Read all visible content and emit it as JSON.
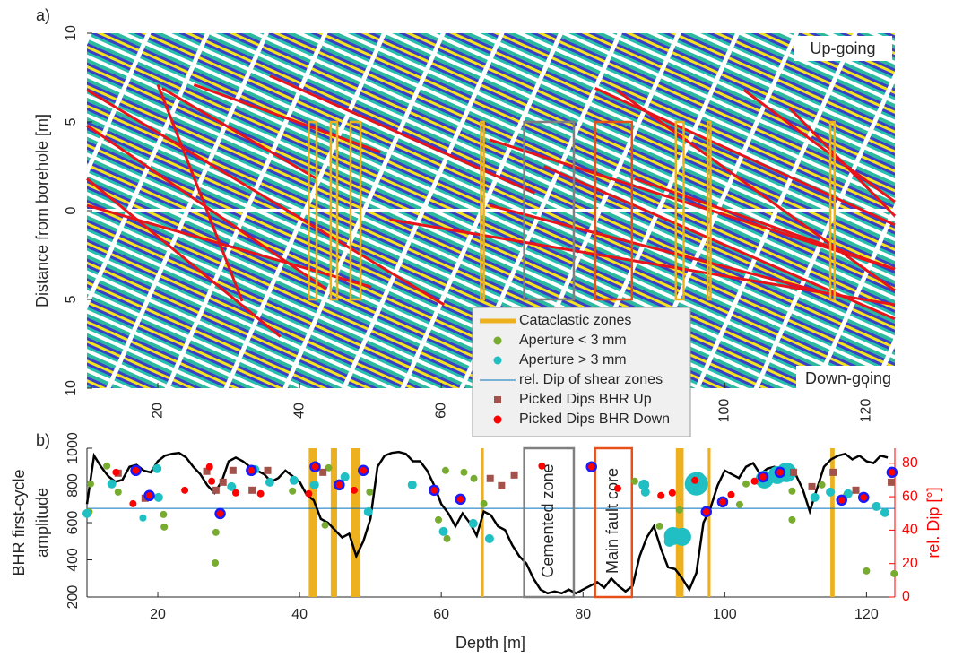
{
  "chart_data": [
    {
      "type": "line",
      "panel_label": "a)",
      "ylabel": "Distance from borehole [m]",
      "xlim": [
        10,
        124
      ],
      "ylim": [
        -10,
        10
      ],
      "xticks": [
        20,
        40,
        60,
        80,
        100,
        120
      ],
      "yticks": [
        10,
        5,
        0,
        {
          "value": -5,
          "label": "5"
        },
        {
          "value": -10,
          "label": "10"
        }
      ],
      "annotations": [
        "Up-going",
        "Down-going"
      ],
      "box_ylim": [
        -5,
        5
      ],
      "segments": {
        "color": "#e8141b",
        "x": [
          [
            10,
            60.4
          ],
          [
            10,
            43.7
          ],
          [
            10,
            37.3
          ],
          [
            20,
            31.9
          ],
          [
            20.6,
            42.4
          ],
          [
            25.1,
            51.4
          ],
          [
            35.8,
            73.2
          ],
          [
            66.8,
            124
          ],
          [
            81.7,
            124
          ],
          [
            84.7,
            124
          ],
          [
            74.5,
            124
          ],
          [
            52.7,
            124
          ],
          [
            102.7,
            124
          ],
          [
            109.1,
            124
          ],
          [
            66.8,
            112.9
          ],
          [
            87.3,
            124
          ],
          [
            10,
            50.1
          ]
        ],
        "y": [
          [
            6.8,
            -5.3
          ],
          [
            4.8,
            -4.4
          ],
          [
            1.8,
            -7.1
          ],
          [
            7.1,
            -5.1
          ],
          [
            6.9,
            1.8
          ],
          [
            7.1,
            3.3
          ],
          [
            7.6,
            1.0
          ],
          [
            4.0,
            -3.3
          ],
          [
            6.9,
            -0.8
          ],
          [
            6.8,
            -4.5
          ],
          [
            2.5,
            -6.1
          ],
          [
            -0.5,
            -5.3
          ],
          [
            6.8,
            0.5
          ],
          [
            5.8,
            -0.3
          ],
          [
            0.3,
            -4.5
          ],
          [
            1.8,
            -3.3
          ],
          [
            0.3,
            -4.3
          ]
        ]
      }
    },
    {
      "type": "line",
      "panel_label": "b)",
      "xlabel": "Depth [m]",
      "ylabel": [
        "BHR first-cycle",
        "amplitude"
      ],
      "y2label": "rel. Dip [°]",
      "xlim": [
        10,
        124
      ],
      "ylim": [
        200,
        1000
      ],
      "y2lim": [
        0,
        89
      ],
      "xticks": [
        20,
        40,
        60,
        80,
        100,
        120
      ],
      "yticks": [
        200,
        400,
        600,
        800,
        1000
      ],
      "y2ticks": [
        0,
        20,
        40,
        60,
        80
      ],
      "y2color": "#ff0000",
      "boxes": [
        {
          "label": "Cemented zone",
          "start": 71.7,
          "end": 78.7,
          "color": "#808080"
        },
        {
          "label": "Main fault core",
          "start": 81.7,
          "end": 86.9,
          "color": "#e8501a"
        }
      ],
      "series": [
        {
          "name": "Cataclastic zones",
          "kind": "span",
          "color": "#edb120",
          "starts": [
            41.3,
            44.4,
            47.2,
            65.6,
            93.1,
            97.6,
            114.9
          ],
          "ends": [
            42.4,
            45.3,
            48.6,
            66.0,
            94.2,
            98.0,
            115.5
          ]
        },
        {
          "name": "Aperture < 3 mm",
          "kind": "scatter",
          "marker": "circle",
          "axis": "y2",
          "color": "#77ac30",
          "x": [
            10.3,
            10.5,
            12.8,
            14.4,
            20.9,
            20.8,
            28.1,
            28.2,
            39.0,
            43.6,
            44.1,
            49.9,
            59.6,
            60.8,
            60.6,
            63.2,
            66.0,
            64.6,
            87.3,
            90.8,
            93.6,
            102.1,
            103.0,
            106.0,
            109.5,
            109.5,
            117.2,
            113.7,
            120.0,
            123.9
          ],
          "values": [
            51,
            67.7,
            78.4,
            62.8,
            41.9,
            49.4,
            20.4,
            38.7,
            63.4,
            43.0,
            77.3,
            62.8,
            46.2,
            34.9,
            75.7,
            74.6,
            55.8,
            70.9,
            69.3,
            42.4,
            52.1,
            55.3,
            67.7,
            72.5,
            46.2,
            63.4,
            61.2,
            67.1,
            15.6,
            14
          ]
        },
        {
          "name": "Aperture > 3 mm",
          "kind": "scatter",
          "marker": "circle",
          "axis": "y2",
          "color": "#1fbfc4",
          "x": [
            10,
            13.5,
            19.9,
            20.1,
            17.9,
            30.4,
            33.7,
            35.8,
            39.2,
            42.1,
            46.4,
            49.7,
            55.9,
            60.3,
            64.5,
            66.8,
            88.6,
            88.8,
            92.2,
            92.7,
            94.0,
            96.0,
            96.4,
            105.6,
            107.4,
            108.7,
            112.7,
            114.9,
            117.4,
            121.4,
            122.6
          ],
          "values": [
            50,
            67.7,
            76.8,
            59.6,
            47.3,
            66.0,
            76.3,
            68.7,
            69.8,
            67.1,
            71.9,
            51.0,
            67.1,
            39.2,
            44.0,
            34.9,
            67.1,
            62.8,
            33.3,
            36.5,
            36.0,
            67.7,
            71.4,
            70.3,
            73.0,
            74.6,
            59.6,
            62.8,
            61.8,
            54.2,
            50.5
          ],
          "sizes": [
            5,
            5,
            5,
            5,
            4,
            5,
            5,
            5,
            5,
            5,
            5,
            5,
            5,
            5,
            5,
            5,
            6,
            5,
            6,
            10,
            10,
            13,
            6,
            10,
            10,
            11,
            5,
            5,
            5,
            5,
            5
          ]
        },
        {
          "name": "rel. Dip of shear zones",
          "kind": "hline",
          "axis": "y2",
          "color": "#0072bd",
          "values": [
            53
          ]
        },
        {
          "name": "Picked Dips BHR Up",
          "kind": "scatter",
          "marker": "square",
          "axis": "y2",
          "color": "#a2524a",
          "x": [
            14.4,
            18.2,
            26.9,
            28.2,
            29.2,
            30.6,
            33.3,
            35.5,
            43.3,
            66.9,
            68.5,
            70.3,
            109.7,
            112.3,
            115.3,
            118.5,
            123.5
          ],
          "values": [
            74.1,
            59.1,
            75.2,
            63.9,
            68.7,
            75.7,
            63.9,
            75.7,
            74.6,
            70.9,
            66.6,
            73.0,
            74.6,
            66.0,
            74.6,
            63.9,
            68.7
          ]
        },
        {
          "name": "Picked Dips BHR Down",
          "kind": "scatter",
          "marker": "circle",
          "axis": "y2",
          "color": "#ff0000",
          "x": [
            14.1,
            16.5,
            23.8,
            27.3,
            27.6,
            31.0,
            34.5,
            41.3,
            47.7,
            74.2,
            84.9,
            91.0,
            92.6,
            95.8,
            100.9,
            104.2
          ],
          "values": [
            74.6,
            55.8,
            63.9,
            77.9,
            69.3,
            62.3,
            61.8,
            61.8,
            63.9,
            78.4,
            65.0,
            60.7,
            62.3,
            69.8,
            61.2,
            69.3
          ]
        },
        {
          "kind": "scatter",
          "marker": "circle",
          "axis": "y2",
          "color": "#ff0000",
          "edgecolor": "#1a1aff",
          "x": [
            16.9,
            18.8,
            28.8,
            33.2,
            42.2,
            45.6,
            49.0,
            59.0,
            62.7,
            81.2,
            97.4,
            99.7,
            105.4,
            107.8,
            116.5,
            119.6,
            123.6
          ],
          "values": [
            75.7,
            60.7,
            49.9,
            75.7,
            77.9,
            67.1,
            75.7,
            63.9,
            58.5,
            77.9,
            51.0,
            56.9,
            71.9,
            74.6,
            58.0,
            59.6,
            74.6
          ]
        },
        {
          "kind": "line",
          "color": "#000000",
          "x": [
            10,
            11,
            12,
            13,
            14,
            15,
            16,
            17,
            18,
            19,
            20,
            21,
            22,
            23,
            24,
            25,
            26,
            27,
            28,
            29,
            30,
            31,
            32,
            33,
            34,
            35,
            36,
            37,
            38,
            39,
            40,
            41,
            42,
            43,
            44,
            45,
            46,
            47,
            48,
            49,
            50,
            51,
            52,
            53,
            54,
            55,
            56,
            57,
            58,
            59,
            60,
            61,
            62,
            63,
            64,
            65,
            66,
            67,
            68,
            69,
            70,
            71,
            72,
            73,
            74,
            75,
            76,
            77,
            78,
            79,
            80,
            81,
            82,
            83,
            84,
            85,
            86,
            87,
            88,
            89,
            90,
            91,
            92,
            93,
            94,
            95,
            96,
            97,
            98,
            99,
            100,
            101,
            102,
            103,
            104,
            105,
            106,
            107,
            108,
            109,
            110,
            111,
            112,
            113,
            114,
            115,
            116,
            117,
            118,
            119,
            120,
            121,
            122,
            123
          ],
          "values": [
            700,
            960,
            900,
            850,
            820,
            830,
            900,
            910,
            880,
            870,
            930,
            960,
            970,
            975,
            950,
            900,
            860,
            800,
            760,
            820,
            930,
            950,
            930,
            900,
            880,
            860,
            820,
            840,
            880,
            850,
            820,
            750,
            720,
            620,
            600,
            560,
            520,
            540,
            420,
            500,
            620,
            900,
            960,
            975,
            980,
            970,
            930,
            930,
            880,
            800,
            700,
            650,
            580,
            650,
            600,
            530,
            660,
            640,
            580,
            560,
            480,
            420,
            380,
            300,
            240,
            220,
            230,
            220,
            240,
            220,
            240,
            260,
            280,
            250,
            300,
            260,
            230,
            260,
            420,
            520,
            580,
            460,
            360,
            350,
            300,
            240,
            330,
            600,
            680,
            800,
            880,
            860,
            840,
            900,
            920,
            860,
            890,
            900,
            860,
            860,
            860,
            780,
            660,
            780,
            900,
            940,
            960,
            970,
            940,
            960,
            930,
            920,
            960,
            950
          ]
        }
      ]
    }
  ]
}
